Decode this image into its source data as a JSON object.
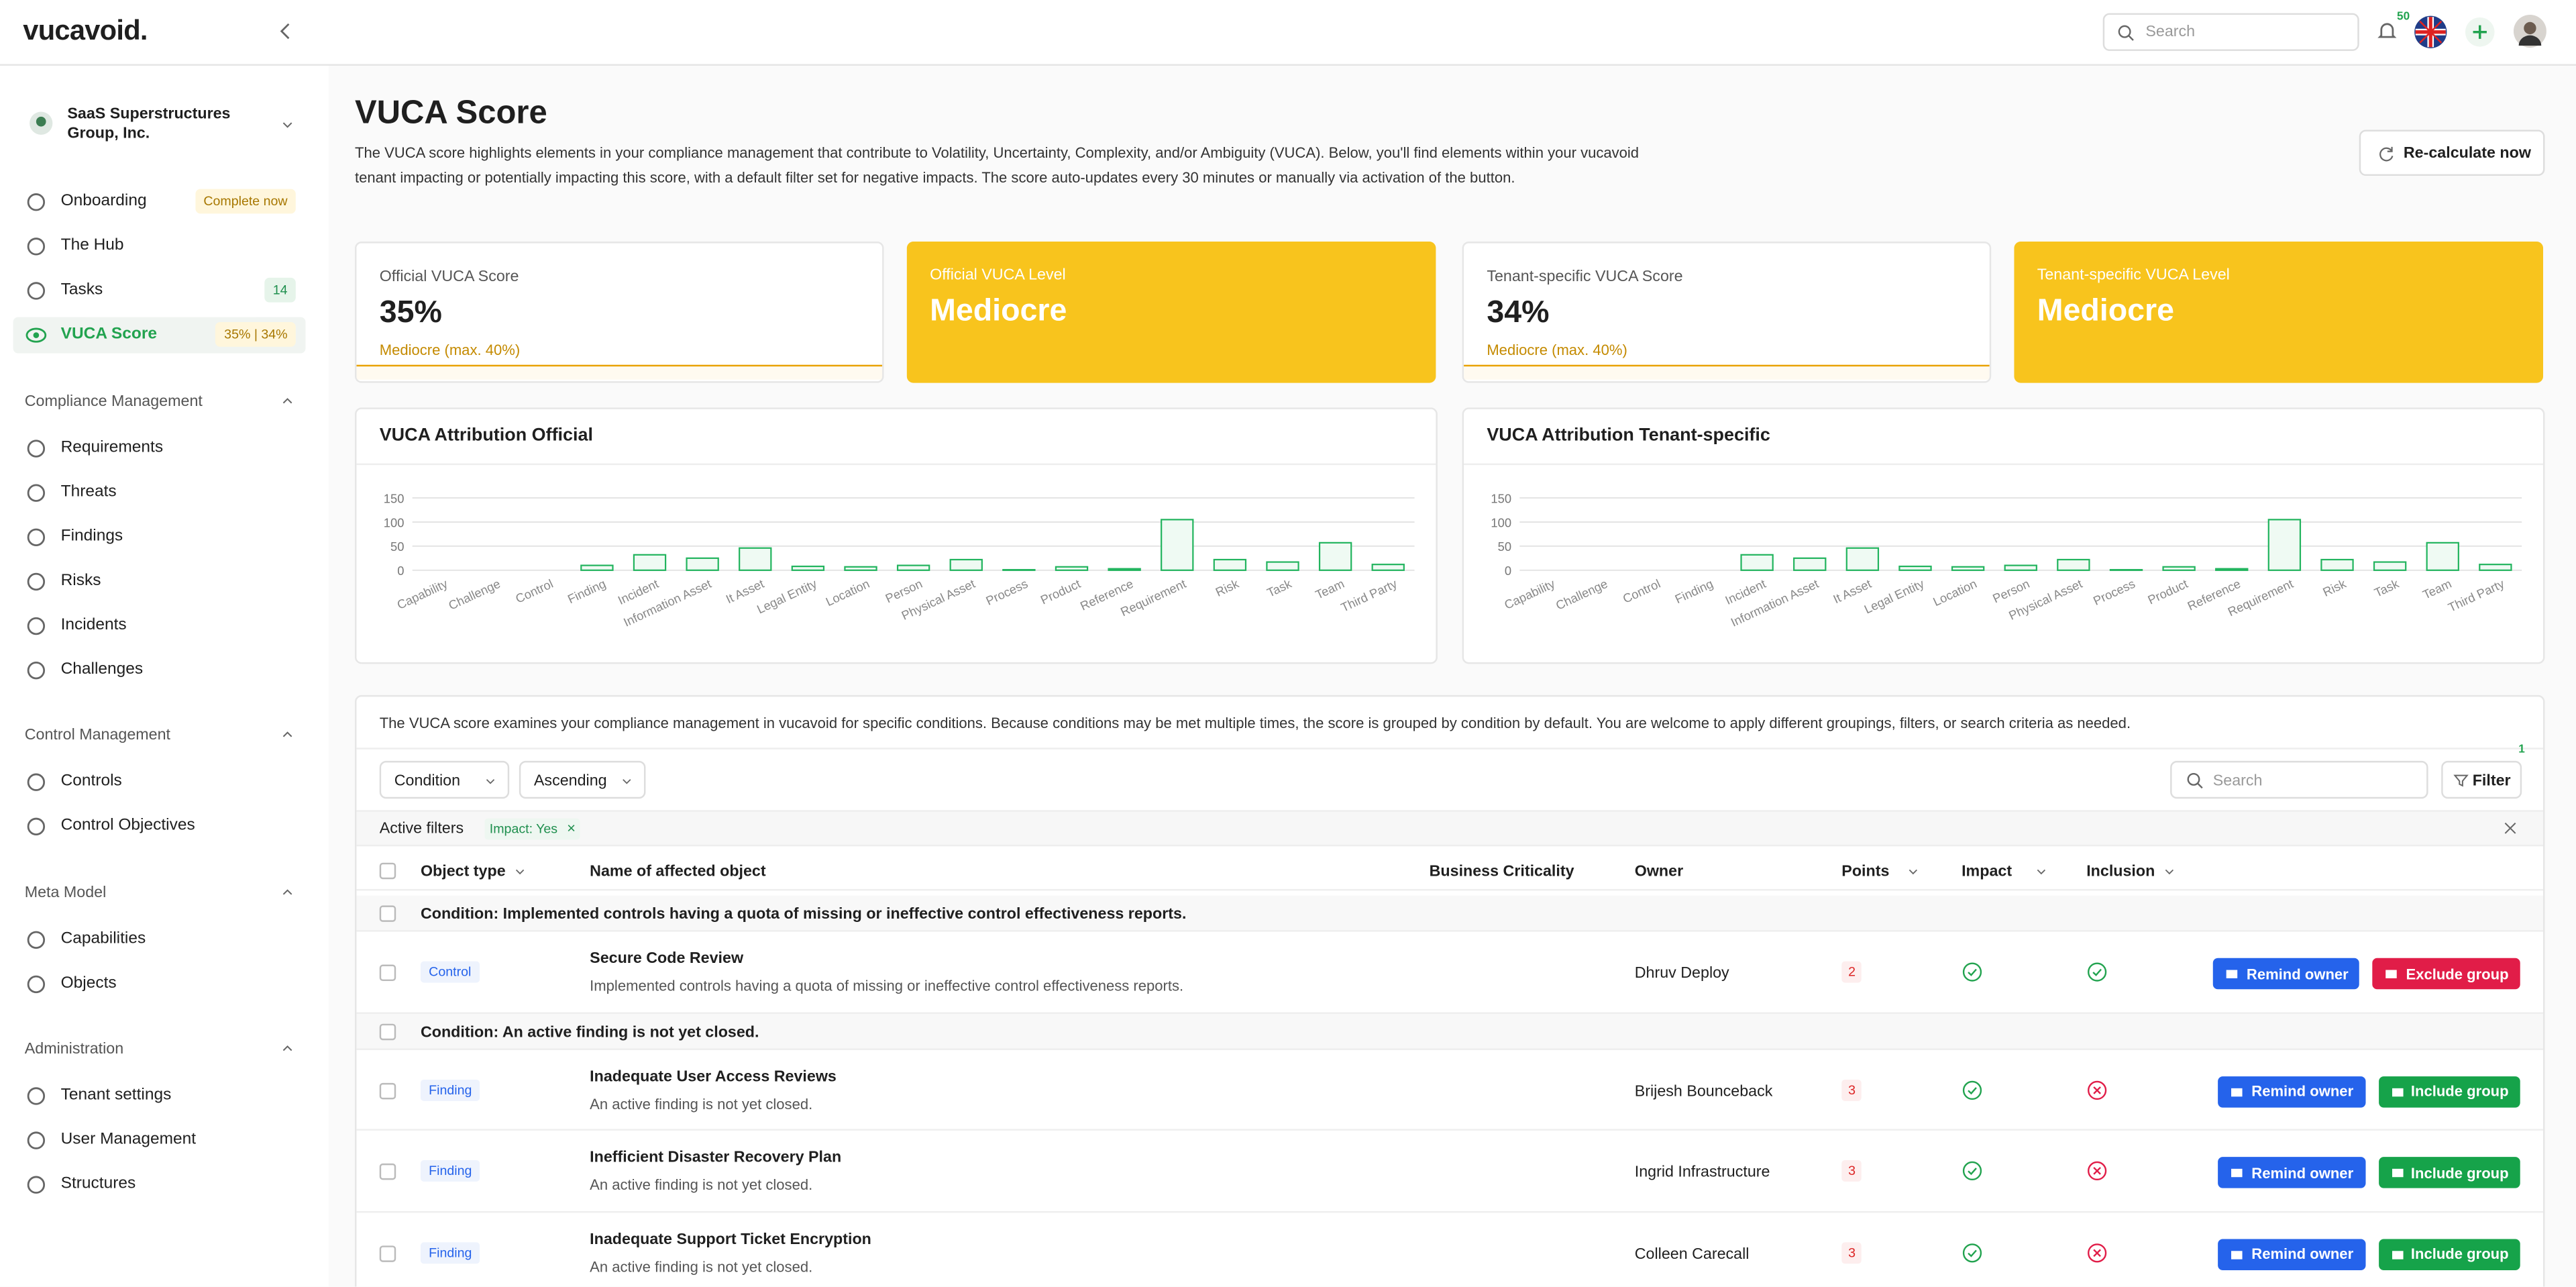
{
  "header": {
    "logo": "vucavoid.",
    "search_placeholder": "Search",
    "notification_count": "50"
  },
  "sidebar": {
    "organization": "SaaS Superstructures Group, Inc.",
    "main_items": [
      {
        "label": "Onboarding",
        "badge": "Complete now",
        "badge_style": "warn"
      },
      {
        "label": "The Hub"
      },
      {
        "label": "Tasks",
        "badge": "14",
        "badge_style": "ok"
      },
      {
        "label": "VUCA Score",
        "badge": "35% | 34%",
        "badge_style": "warn",
        "active": true
      }
    ],
    "sections": [
      {
        "title": "Compliance Management",
        "items": [
          "Requirements",
          "Threats",
          "Findings",
          "Risks",
          "Incidents",
          "Challenges"
        ]
      },
      {
        "title": "Control Management",
        "items": [
          "Controls",
          "Control Objectives"
        ]
      },
      {
        "title": "Meta Model",
        "items": [
          "Capabilities",
          "Objects"
        ]
      },
      {
        "title": "Administration",
        "items": [
          "Tenant settings",
          "User Management",
          "Structures"
        ]
      }
    ]
  },
  "page": {
    "title": "VUCA Score",
    "description": "The VUCA score highlights elements in your compliance management that contribute to Volatility, Uncertainty, Complexity, and/or Ambiguity (VUCA). Below, you'll find elements within your vucavoid tenant impacting or potentially impacting this score, with a default filter set for negative impacts. The score auto-updates every 30 minutes or manually via activation of the button.",
    "recalculate_button": "Re-calculate now"
  },
  "score_cards": [
    {
      "label": "Official VUCA Score",
      "value": "35%",
      "note": "Mediocre (max. 40%)",
      "highlight": false
    },
    {
      "label": "Official VUCA Level",
      "value": "Mediocre",
      "highlight": true
    },
    {
      "label": "Tenant-specific VUCA Score",
      "value": "34%",
      "note": "Mediocre (max. 40%)",
      "highlight": false
    },
    {
      "label": "Tenant-specific VUCA Level",
      "value": "Mediocre",
      "highlight": true
    }
  ],
  "chart_data": [
    {
      "type": "bar",
      "title": "VUCA Attribution Official",
      "categories": [
        "Capability",
        "Challenge",
        "Control",
        "Finding",
        "Incident",
        "Information Asset",
        "It Asset",
        "Legal Entity",
        "Location",
        "Person",
        "Physical Asset",
        "Process",
        "Product",
        "Reference",
        "Requirement",
        "Risk",
        "Task",
        "Team",
        "Third Party"
      ],
      "values": [
        0,
        0,
        0,
        10,
        32,
        25,
        46,
        8,
        7,
        10,
        22,
        1,
        7,
        3,
        105,
        22,
        17,
        57,
        12
      ],
      "color": "#22b45e",
      "ylim": [
        0,
        150
      ],
      "yticks": [
        0,
        50,
        100,
        150
      ],
      "grid": true
    },
    {
      "type": "bar",
      "title": "VUCA Attribution Tenant-specific",
      "categories": [
        "Capability",
        "Challenge",
        "Control",
        "Finding",
        "Incident",
        "Information Asset",
        "It Asset",
        "Legal Entity",
        "Location",
        "Person",
        "Physical Asset",
        "Process",
        "Product",
        "Reference",
        "Requirement",
        "Risk",
        "Task",
        "Team",
        "Third Party"
      ],
      "values": [
        0,
        0,
        0,
        0,
        32,
        25,
        46,
        8,
        7,
        10,
        22,
        1,
        7,
        3,
        105,
        22,
        17,
        57,
        12
      ],
      "color": "#22b45e",
      "ylim": [
        0,
        150
      ],
      "yticks": [
        0,
        50,
        100,
        150
      ],
      "grid": true
    }
  ],
  "conditions_table": {
    "intro": "The VUCA score examines your compliance management in vucavoid for specific conditions. Because conditions may be met multiple times, the score is grouped by condition by default. You are welcome to apply different groupings, filters, or search criteria as needed.",
    "group_by": "Condition",
    "sort_order": "Ascending",
    "search_placeholder": "Search",
    "filter_button": "Filter",
    "filter_count": "1",
    "active_filters_label": "Active filters",
    "active_filters": [
      "Impact: Yes"
    ],
    "columns": [
      "Object type",
      "Name of affected object",
      "Business Criticality",
      "Owner",
      "Points",
      "Impact",
      "Inclusion"
    ],
    "groups": [
      {
        "condition": "Condition: Implemented controls having a quota of missing or ineffective control effectiveness reports.",
        "rows": [
          {
            "object_type": "Control",
            "name": "Secure Code Review",
            "description": "Implemented controls having a quota of missing or ineffective control effectiveness reports.",
            "owner": "Dhruv Deploy",
            "points": 2,
            "impact": true,
            "inclusion": true,
            "actions": [
              "Remind owner",
              "Exclude group"
            ]
          }
        ]
      },
      {
        "condition": "Condition: An active finding is not yet closed.",
        "rows": [
          {
            "object_type": "Finding",
            "name": "Inadequate User Access Reviews",
            "description": "An active finding is not yet closed.",
            "owner": "Brijesh Bounceback",
            "points": 3,
            "impact": true,
            "inclusion": false,
            "actions": [
              "Remind owner",
              "Include group"
            ]
          },
          {
            "object_type": "Finding",
            "name": "Inefficient Disaster Recovery Plan",
            "description": "An active finding is not yet closed.",
            "owner": "Ingrid Infrastructure",
            "points": 3,
            "impact": true,
            "inclusion": false,
            "actions": [
              "Remind owner",
              "Include group"
            ]
          },
          {
            "object_type": "Finding",
            "name": "Inadequate Support Ticket Encryption",
            "description": "An active finding is not yet closed.",
            "owner": "Colleen Carecall",
            "points": 3,
            "impact": true,
            "inclusion": false,
            "actions": [
              "Remind owner",
              "Include group"
            ]
          }
        ]
      }
    ]
  }
}
